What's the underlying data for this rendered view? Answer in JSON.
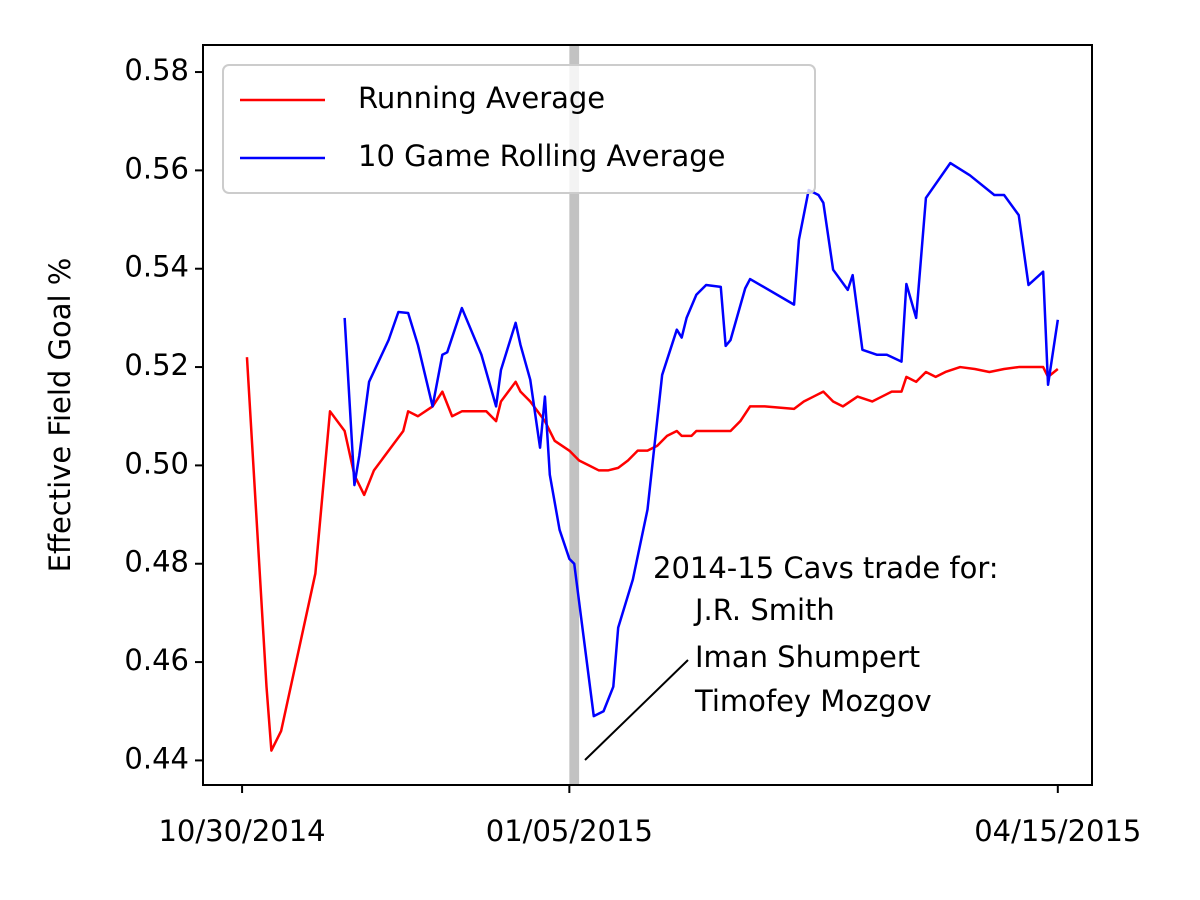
{
  "chart_data": {
    "type": "line",
    "ylabel": "Effective Field Goal %",
    "xlim": [
      "2014-10-22",
      "2015-04-22"
    ],
    "xticks": [
      {
        "value": "2014-10-30",
        "label": "10/30/2014"
      },
      {
        "value": "2015-01-05",
        "label": "01/05/2015"
      },
      {
        "value": "2015-04-15",
        "label": "04/15/2015"
      }
    ],
    "ylim": [
      0.435,
      0.5855
    ],
    "yticks": [
      0.44,
      0.46,
      0.48,
      {
        "value": 0.5,
        "label": "0.50"
      },
      0.52,
      0.54,
      0.56,
      0.58
    ],
    "legend": "upper left",
    "shaded_span": {
      "x": [
        "2015-01-05",
        "2015-01-07"
      ],
      "color": "#999999"
    },
    "annotation": [
      "2014-15 Cavs trade for:",
      "J.R. Smith",
      "Iman Shumpert",
      "Timofey Mozgov"
    ],
    "series": [
      {
        "name": "Running Average",
        "color": "#ff0000",
        "x": [
          "2014-10-31",
          "2014-11-04",
          "2014-11-05",
          "2014-11-07",
          "2014-11-14",
          "2014-11-17",
          "2014-11-20",
          "2014-11-22",
          "2014-11-24",
          "2014-11-26",
          "2014-11-29",
          "2014-12-02",
          "2014-12-03",
          "2014-12-05",
          "2014-12-08",
          "2014-12-10",
          "2014-12-12",
          "2014-12-14",
          "2014-12-16",
          "2014-12-19",
          "2014-12-21",
          "2014-12-22",
          "2014-12-25",
          "2014-12-26",
          "2014-12-28",
          "2014-12-31",
          "2015-01-02",
          "2015-01-05",
          "2015-01-07",
          "2015-01-09",
          "2015-01-11",
          "2015-01-13",
          "2015-01-15",
          "2015-01-17",
          "2015-01-19",
          "2015-01-21",
          "2015-01-23",
          "2015-01-25",
          "2015-01-27",
          "2015-01-28",
          "2015-01-30",
          "2015-01-31",
          "2015-02-02",
          "2015-02-04",
          "2015-02-07",
          "2015-02-09",
          "2015-02-11",
          "2015-02-14",
          "2015-02-20",
          "2015-02-22",
          "2015-02-24",
          "2015-02-26",
          "2015-02-28",
          "2015-03-02",
          "2015-03-05",
          "2015-03-08",
          "2015-03-10",
          "2015-03-12",
          "2015-03-14",
          "2015-03-15",
          "2015-03-17",
          "2015-03-19",
          "2015-03-21",
          "2015-03-23",
          "2015-03-26",
          "2015-03-29",
          "2015-04-01",
          "2015-04-04",
          "2015-04-07",
          "2015-04-10",
          "2015-04-12",
          "2015-04-13",
          "2015-04-15"
        ],
        "values": [
          0.522,
          0.455,
          0.442,
          0.446,
          0.478,
          0.511,
          0.507,
          0.498,
          0.494,
          0.499,
          0.503,
          0.507,
          0.511,
          0.51,
          0.512,
          0.515,
          0.51,
          0.511,
          0.511,
          0.511,
          0.509,
          0.513,
          0.517,
          0.515,
          0.513,
          0.509,
          0.505,
          0.503,
          0.501,
          0.5,
          0.499,
          0.499,
          0.4995,
          0.501,
          0.503,
          0.503,
          0.504,
          0.506,
          0.507,
          0.506,
          0.506,
          0.507,
          0.507,
          0.507,
          0.507,
          0.509,
          0.512,
          0.512,
          0.5115,
          0.513,
          0.514,
          0.515,
          0.513,
          0.512,
          0.514,
          0.513,
          0.514,
          0.515,
          0.515,
          0.518,
          0.517,
          0.519,
          0.518,
          0.519,
          0.52,
          0.5196,
          0.519,
          0.5196,
          0.52,
          0.52,
          0.52,
          0.518,
          0.5196
        ]
      },
      {
        "name": "10 Game Rolling Average",
        "color": "#0000ff",
        "x": [
          "2014-11-20",
          "2014-11-22",
          "2014-11-23",
          "2014-11-25",
          "2014-11-29",
          "2014-12-01",
          "2014-12-03",
          "2014-12-05",
          "2014-12-08",
          "2014-12-10",
          "2014-12-11",
          "2014-12-14",
          "2014-12-18",
          "2014-12-21",
          "2014-12-22",
          "2014-12-25",
          "2014-12-26",
          "2014-12-28",
          "2014-12-30",
          "2014-12-31",
          "2015-01-01",
          "2015-01-03",
          "2015-01-05",
          "2015-01-06",
          "2015-01-10",
          "2015-01-12",
          "2015-01-14",
          "2015-01-15",
          "2015-01-18",
          "2015-01-21",
          "2015-01-24",
          "2015-01-27",
          "2015-01-28",
          "2015-01-29",
          "2015-01-31",
          "2015-02-02",
          "2015-02-05",
          "2015-02-06",
          "2015-02-07",
          "2015-02-10",
          "2015-02-11",
          "2015-02-20",
          "2015-02-21",
          "2015-02-23",
          "2015-02-25",
          "2015-02-26",
          "2015-02-28",
          "2015-03-03",
          "2015-03-04",
          "2015-03-06",
          "2015-03-09",
          "2015-03-11",
          "2015-03-14",
          "2015-03-15",
          "2015-03-17",
          "2015-03-19",
          "2015-03-24",
          "2015-03-28",
          "2015-04-02",
          "2015-04-04",
          "2015-04-07",
          "2015-04-09",
          "2015-04-12",
          "2015-04-13",
          "2015-04-15"
        ],
        "values": [
          0.53,
          0.496,
          0.502,
          0.517,
          0.5255,
          0.5312,
          0.531,
          0.5245,
          0.512,
          0.5225,
          0.523,
          0.532,
          0.5225,
          0.512,
          0.5194,
          0.529,
          0.5245,
          0.5174,
          0.5036,
          0.514,
          0.4981,
          0.4869,
          0.481,
          0.48,
          0.449,
          0.45,
          0.455,
          0.467,
          0.4768,
          0.491,
          0.5184,
          0.5276,
          0.526,
          0.53,
          0.5347,
          0.5367,
          0.5363,
          0.5243,
          0.5255,
          0.536,
          0.5379,
          0.5327,
          0.5459,
          0.556,
          0.555,
          0.5534,
          0.5398,
          0.5357,
          0.5387,
          0.5235,
          0.5225,
          0.5225,
          0.5211,
          0.5369,
          0.53,
          0.5544,
          0.5615,
          0.559,
          0.555,
          0.555,
          0.5509,
          0.5367,
          0.5394,
          0.5164,
          0.5296
        ]
      }
    ]
  }
}
